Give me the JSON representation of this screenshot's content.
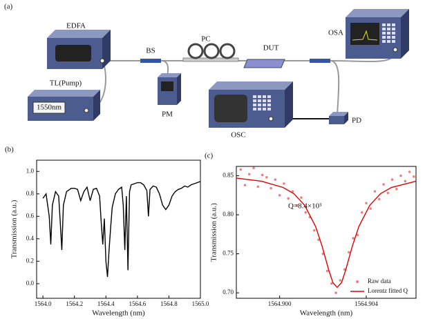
{
  "diagram": {
    "panel": "(a)",
    "edfa": "EDFA",
    "bs": "BS",
    "pc": "PC",
    "dut": "DUT",
    "osa": "OSA",
    "tl": "TL(Pump)",
    "tl_display": "1550nm",
    "pm": "PM",
    "osc": "OSC",
    "pd": "PD"
  },
  "chart_data": [
    {
      "type": "line",
      "panel": "(b)",
      "x_label": "Wavelength (nm)",
      "y_label": "Transmission (a.u.)",
      "color": "#000000",
      "xlim": [
        1563.96,
        1565.0
      ],
      "ylim": [
        -0.13,
        1.1
      ],
      "xticks": [
        {
          "value": 1564.0,
          "label": "1564.0"
        },
        1564.2,
        1564.4,
        1564.6,
        1564.8,
        {
          "value": 1565.0,
          "label": "1565.0"
        }
      ],
      "yticks": [
        {
          "value": 0.0,
          "label": "0.0"
        },
        0.2,
        0.4,
        0.6,
        0.8,
        {
          "value": 1.0,
          "label": "1.0"
        }
      ],
      "x": [
        1564.0,
        1564.02,
        1564.04,
        1564.05,
        1564.06,
        1564.08,
        1564.1,
        1564.11,
        1564.12,
        1564.13,
        1564.15,
        1564.18,
        1564.2,
        1564.22,
        1564.24,
        1564.26,
        1564.28,
        1564.3,
        1564.32,
        1564.34,
        1564.36,
        1564.37,
        1564.38,
        1564.39,
        1564.4,
        1564.41,
        1564.42,
        1564.43,
        1564.44,
        1564.46,
        1564.48,
        1564.5,
        1564.51,
        1564.52,
        1564.53,
        1564.54,
        1564.55,
        1564.56,
        1564.58,
        1564.6,
        1564.62,
        1564.64,
        1564.66,
        1564.67,
        1564.68,
        1564.7,
        1564.72,
        1564.74,
        1564.76,
        1564.78,
        1564.8,
        1564.82,
        1564.84,
        1564.86,
        1564.88,
        1564.9,
        1564.92,
        1564.94,
        1564.96,
        1564.98,
        1565.0
      ],
      "values": [
        0.76,
        0.8,
        0.6,
        0.35,
        0.7,
        0.82,
        0.78,
        0.55,
        0.3,
        0.7,
        0.82,
        0.85,
        0.85,
        0.84,
        0.74,
        0.82,
        0.86,
        0.74,
        0.84,
        0.85,
        0.78,
        0.55,
        0.35,
        0.58,
        0.2,
        0.06,
        0.3,
        0.5,
        0.68,
        0.8,
        0.84,
        0.86,
        0.7,
        0.3,
        0.78,
        0.12,
        0.82,
        0.88,
        0.89,
        0.9,
        0.9,
        0.88,
        0.83,
        0.6,
        0.84,
        0.87,
        0.86,
        0.8,
        0.7,
        0.66,
        0.7,
        0.78,
        0.82,
        0.84,
        0.85,
        0.87,
        0.86,
        0.88,
        0.89,
        0.9,
        0.91
      ]
    },
    {
      "type": "scatter",
      "panel": "(c)",
      "x_label": "Wavelength (nm)",
      "y_label": "Transmission (a.u.)",
      "annotation": "Q=8.4×10⁵",
      "legend": "lower right",
      "xlim": [
        1564.898,
        1564.9063
      ],
      "ylim": [
        0.693,
        0.862
      ],
      "xticks": [
        {
          "value": 1564.9,
          "label": "1564.900"
        },
        {
          "value": 1564.904,
          "label": "1564.904"
        }
      ],
      "yticks": [
        {
          "value": 0.7,
          "label": "0.70"
        },
        0.75,
        {
          "value": 0.8,
          "label": "0.80"
        },
        0.85
      ],
      "series": [
        {
          "name": "Raw data",
          "type": "scatter",
          "color": "#f08080",
          "x": [
            1564.8982,
            1564.8984,
            1564.8986,
            1564.8988,
            1564.899,
            1564.8992,
            1564.8994,
            1564.8996,
            1564.8998,
            1564.9,
            1564.9002,
            1564.9004,
            1564.9006,
            1564.9008,
            1564.901,
            1564.9012,
            1564.9014,
            1564.9016,
            1564.9018,
            1564.902,
            1564.9022,
            1564.9024,
            1564.9026,
            1564.9028,
            1564.903,
            1564.9032,
            1564.9034,
            1564.9036,
            1564.9038,
            1564.904,
            1564.9042,
            1564.9044,
            1564.9046,
            1564.9048,
            1564.905,
            1564.9052,
            1564.9054,
            1564.9056,
            1564.9058,
            1564.906,
            1564.9062
          ],
          "values": [
            0.858,
            0.838,
            0.852,
            0.86,
            0.836,
            0.851,
            0.848,
            0.834,
            0.845,
            0.825,
            0.84,
            0.821,
            0.83,
            0.812,
            0.822,
            0.803,
            0.797,
            0.78,
            0.768,
            0.75,
            0.728,
            0.712,
            0.7,
            0.716,
            0.73,
            0.752,
            0.77,
            0.774,
            0.803,
            0.815,
            0.808,
            0.83,
            0.82,
            0.839,
            0.828,
            0.845,
            0.833,
            0.85,
            0.843,
            0.855,
            0.849
          ]
        },
        {
          "name": "Lorentz fitted Q",
          "type": "line",
          "color": "#e00000",
          "x": [
            1564.898,
            1564.89916,
            1564.90016,
            1564.90066,
            1564.90116,
            1564.90166,
            1564.90196,
            1564.90226,
            1564.90246,
            1564.90266,
            1564.90286,
            1564.90306,
            1564.90336,
            1564.90366,
            1564.90416,
            1564.90466,
            1564.90516,
            1564.9063
          ],
          "values": [
            0.847,
            0.843,
            0.835,
            0.827,
            0.812,
            0.785,
            0.76,
            0.73,
            0.713,
            0.707,
            0.713,
            0.73,
            0.76,
            0.785,
            0.812,
            0.827,
            0.835,
            0.843
          ]
        }
      ]
    }
  ]
}
